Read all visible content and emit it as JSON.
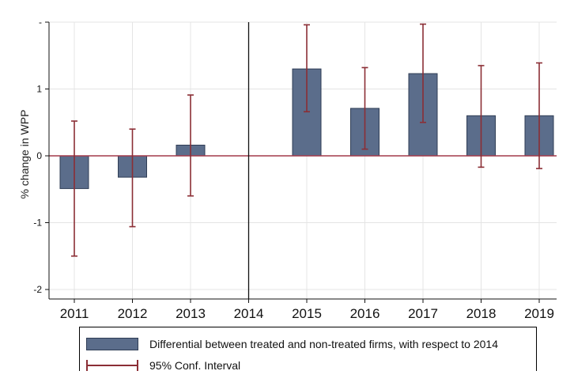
{
  "chart_data": {
    "type": "bar",
    "categories": [
      "2011",
      "2012",
      "2013",
      "2014",
      "2015",
      "2016",
      "2017",
      "2018",
      "2019"
    ],
    "ylabel": "% change in WPP",
    "ylim": [
      -2,
      2
    ],
    "yticks": [
      -2,
      -1,
      0,
      1,
      2
    ],
    "ytick_labels": [
      "-2",
      "-1",
      "0",
      "1",
      "-"
    ],
    "reference_year": "2014",
    "series": [
      {
        "name": "Differential between treated and non-treated firms, with respect to 2014",
        "values": [
          -0.49,
          -0.32,
          0.16,
          null,
          1.3,
          0.71,
          1.23,
          0.6,
          0.6
        ],
        "ci_lower": [
          -1.5,
          -1.06,
          -0.6,
          null,
          0.66,
          0.1,
          0.5,
          -0.17,
          -0.19
        ],
        "ci_upper": [
          0.52,
          0.4,
          0.91,
          null,
          1.96,
          1.32,
          1.97,
          1.35,
          1.39
        ]
      }
    ],
    "ci_label": "95% Conf. Interval",
    "colors": {
      "bar": "#5b6d8b",
      "bar_edge": "#2f3d55",
      "ci": "#8b2e35",
      "zero_line": "#a33a4a",
      "grid": "#e4e4e4"
    },
    "grid": true,
    "legend_position": "bottom"
  }
}
